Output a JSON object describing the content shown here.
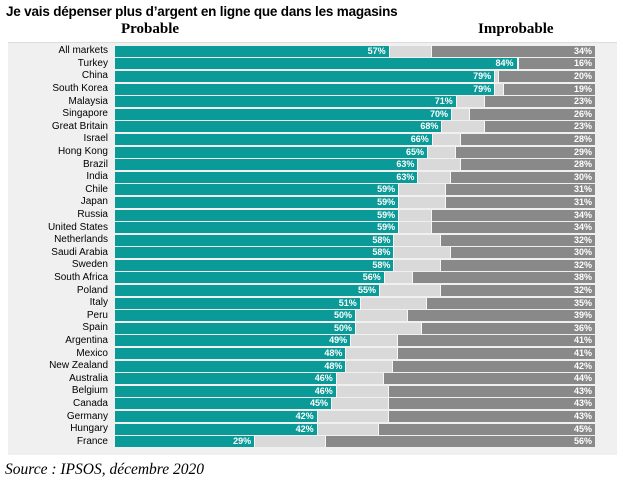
{
  "title": "Je vais dépenser plus d’argent en ligne que dans les magasins",
  "source": "Source : IPSOS, décembre 2020",
  "chart_data": {
    "type": "bar",
    "subtype": "horizontal-diverging-stacked",
    "title": "Je vais dépenser plus d’argent en ligne que dans les magasins",
    "unit": "%",
    "legend_position": "column-headers-top",
    "grid": false,
    "xlim": [
      0,
      100
    ],
    "column_headers": {
      "probable": "Probable",
      "improbable": "Improbable"
    },
    "categories": [
      "All markets",
      "Turkey",
      "China",
      "South Korea",
      "Malaysia",
      "Singapore",
      "Great Britain",
      "Israel",
      "Hong Kong",
      "Brazil",
      "India",
      "Chile",
      "Japan",
      "Russia",
      "United States",
      "Netherlands",
      "Saudi Arabia",
      "Sweden",
      "South Africa",
      "Poland",
      "Italy",
      "Peru",
      "Spain",
      "Argentina",
      "Mexico",
      "New Zealand",
      "Australia",
      "Belgium",
      "Canada",
      "Germany",
      "Hungary",
      "France"
    ],
    "series": [
      {
        "name": "Probable",
        "values": [
          57,
          84,
          79,
          79,
          71,
          70,
          68,
          66,
          65,
          63,
          63,
          59,
          59,
          59,
          59,
          58,
          58,
          58,
          56,
          55,
          51,
          50,
          50,
          49,
          48,
          48,
          46,
          46,
          45,
          42,
          42,
          29
        ]
      },
      {
        "name": "Improbable",
        "values": [
          34,
          16,
          20,
          19,
          23,
          26,
          23,
          28,
          29,
          28,
          30,
          31,
          31,
          34,
          34,
          32,
          30,
          32,
          38,
          32,
          35,
          39,
          36,
          41,
          41,
          42,
          44,
          43,
          43,
          43,
          45,
          56
        ]
      }
    ],
    "colors": {
      "probable": "#0a9a98",
      "improbable": "#898989",
      "remainder": "#d9d9d9",
      "plot_background": "#f0f0f0"
    }
  }
}
